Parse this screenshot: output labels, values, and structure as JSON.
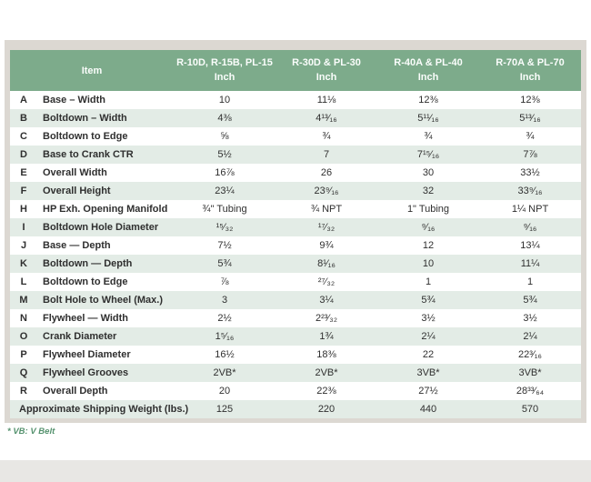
{
  "table": {
    "item_header": "Item",
    "unit_label": "Inch",
    "columns": [
      {
        "label": "R-10D, R-15B, PL-15",
        "sub": "Inch"
      },
      {
        "label": "R-30D & PL-30",
        "sub": "Inch"
      },
      {
        "label": "R-40A & PL-40",
        "sub": "Inch"
      },
      {
        "label": "R-70A & PL-70",
        "sub": "Inch"
      }
    ],
    "rows": [
      {
        "letter": "A",
        "item": "Base – Width",
        "values": [
          "10",
          "11⅛",
          "12⅜",
          "12⅜"
        ]
      },
      {
        "letter": "B",
        "item": "Boltdown – Width",
        "values": [
          "4⅜",
          "4¹³⁄₁₆",
          "5¹¹⁄₁₆",
          "5¹³⁄₁₆"
        ]
      },
      {
        "letter": "C",
        "item": "Boltdown to Edge",
        "values": [
          "⅝",
          "¾",
          "¾",
          "¾"
        ]
      },
      {
        "letter": "D",
        "item": "Base to Crank CTR",
        "values": [
          "5½",
          "7",
          "7¹⁵⁄₁₆",
          "7⅞"
        ]
      },
      {
        "letter": "E",
        "item": "Overall Width",
        "values": [
          "16⅞",
          "26",
          "30",
          "33½"
        ]
      },
      {
        "letter": "F",
        "item": "Overall Height",
        "values": [
          "23¼",
          "23⁹⁄₁₆",
          "32",
          "33⁹⁄₁₆"
        ]
      },
      {
        "letter": "H",
        "item": "HP Exh. Opening Manifold",
        "values": [
          "¾\" Tubing",
          "¾ NPT",
          "1\" Tubing",
          "1¼ NPT"
        ]
      },
      {
        "letter": "I",
        "item": "Boltdown Hole Diameter",
        "values": [
          "¹⁵⁄₃₂",
          "¹⁷⁄₃₂",
          "⁹⁄₁₆",
          "⁹⁄₁₆"
        ]
      },
      {
        "letter": "J",
        "item": "Base — Depth",
        "values": [
          "7½",
          "9¾",
          "12",
          "13¼"
        ]
      },
      {
        "letter": "K",
        "item": "Boltdown — Depth",
        "values": [
          "5¾",
          "8¹⁄₁₆",
          "10",
          "11¼"
        ]
      },
      {
        "letter": "L",
        "item": "Boltdown to Edge",
        "values": [
          "⅞",
          "²⁷⁄₃₂",
          "1",
          "1"
        ]
      },
      {
        "letter": "M",
        "item": "Bolt Hole to Wheel (Max.)",
        "values": [
          "3",
          "3¼",
          "5¾",
          "5¾"
        ]
      },
      {
        "letter": "N",
        "item": "Flywheel — Width",
        "values": [
          "2½",
          "2²³⁄₃₂",
          "3½",
          "3½"
        ]
      },
      {
        "letter": "O",
        "item": "Crank Diameter",
        "values": [
          "1⁵⁄₁₆",
          "1¾",
          "2¼",
          "2¼"
        ]
      },
      {
        "letter": "P",
        "item": "Flywheel Diameter",
        "values": [
          "16½",
          "18⅜",
          "22",
          "22³⁄₁₆"
        ]
      },
      {
        "letter": "Q",
        "item": "Flywheel Grooves",
        "values": [
          "2VB*",
          "2VB*",
          "3VB*",
          "3VB*"
        ]
      },
      {
        "letter": "R",
        "item": "Overall Depth",
        "values": [
          "20",
          "22⅜",
          "27½",
          "28³³⁄₆₄"
        ]
      }
    ],
    "footer_row": {
      "label": "Approximate Shipping Weight (lbs.)",
      "values": [
        "125",
        "220",
        "440",
        "570"
      ]
    },
    "footnote": "* VB: V Belt"
  },
  "colors": {
    "header_bg": "#7dab8b",
    "header_text": "#fafdfb",
    "row_stripe": "#e3ece6",
    "frame": "#dcd8d2",
    "footnote_text": "#55926e",
    "body_text": "#2f2f2f"
  }
}
